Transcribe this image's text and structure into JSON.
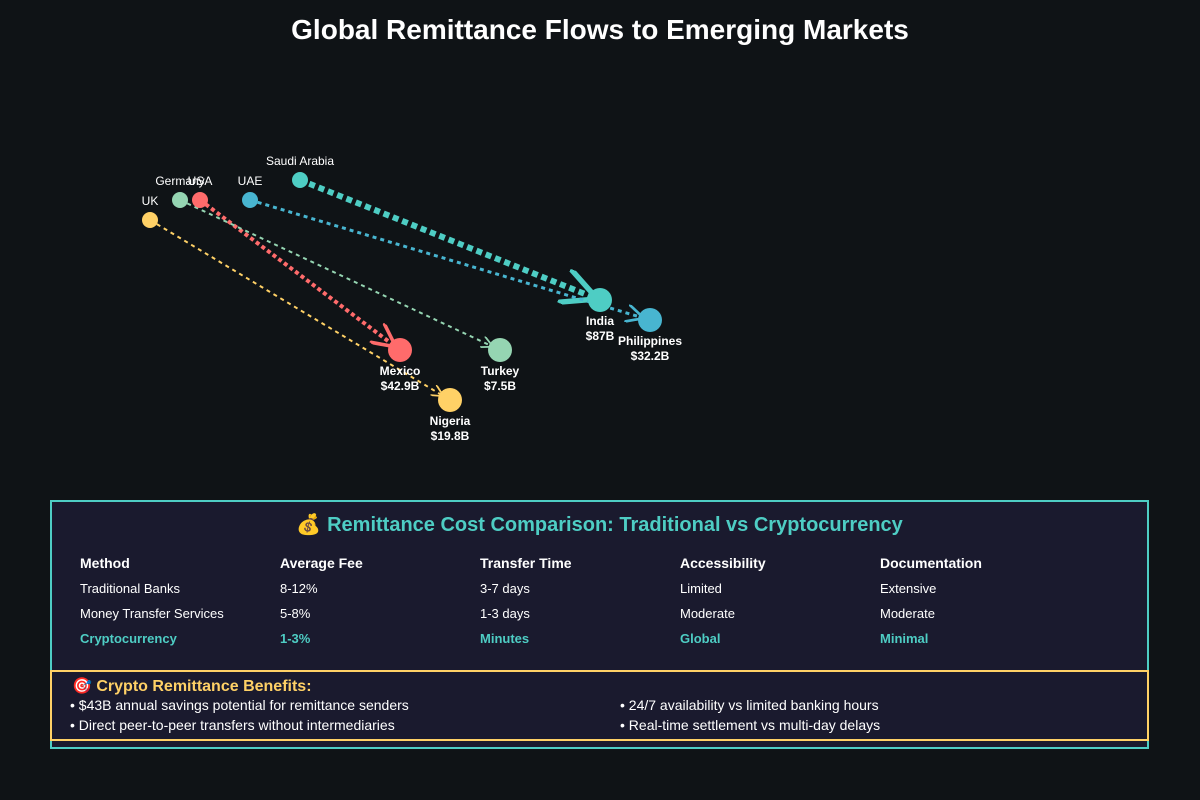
{
  "title": "Global Remittance Flows to Emerging Markets",
  "sources": [
    {
      "name": "UK",
      "color": "#ffd166"
    },
    {
      "name": "Germany",
      "color": "#95d5b2"
    },
    {
      "name": "USA",
      "color": "#ff6b6b"
    },
    {
      "name": "UAE",
      "color": "#48b5d0"
    },
    {
      "name": "Saudi Arabia",
      "color": "#4ecdc4"
    }
  ],
  "destinations": [
    {
      "name": "India",
      "amount": "$87B",
      "color": "#4ecdc4"
    },
    {
      "name": "Philippines",
      "amount": "$32.2B",
      "color": "#48b5d0"
    },
    {
      "name": "Mexico",
      "amount": "$42.9B",
      "color": "#ff6b6b"
    },
    {
      "name": "Turkey",
      "amount": "$7.5B",
      "color": "#95d5b2"
    },
    {
      "name": "Nigeria",
      "amount": "$19.8B",
      "color": "#ffd166"
    }
  ],
  "flows": [
    {
      "from": "Saudi Arabia",
      "to": "India",
      "color": "#4ecdc4"
    },
    {
      "from": "UAE",
      "to": "Philippines",
      "color": "#48b5d0"
    },
    {
      "from": "USA",
      "to": "Mexico",
      "color": "#ff6b6b"
    },
    {
      "from": "Germany",
      "to": "Turkey",
      "color": "#95d5b2"
    },
    {
      "from": "UK",
      "to": "Nigeria",
      "color": "#ffd166"
    }
  ],
  "comparison": {
    "icon": "money-bag-icon",
    "title": "Remittance Cost Comparison: Traditional vs Cryptocurrency",
    "headers": [
      "Method",
      "Average Fee",
      "Transfer Time",
      "Accessibility",
      "Documentation"
    ],
    "rows": [
      [
        "Traditional Banks",
        "8-12%",
        "3-7 days",
        "Limited",
        "Extensive"
      ],
      [
        "Money Transfer Services",
        "5-8%",
        "1-3 days",
        "Moderate",
        "Moderate"
      ],
      [
        "Cryptocurrency",
        "1-3%",
        "Minutes",
        "Global",
        "Minimal"
      ]
    ]
  },
  "benefits": {
    "icon": "target-icon",
    "title": "Crypto Remittance Benefits:",
    "items": [
      "• $43B annual savings potential for remittance senders",
      "• 24/7 availability vs limited banking hours",
      "• Direct peer-to-peer transfers without intermediaries",
      "• Real-time settlement vs multi-day delays"
    ]
  },
  "colors": {
    "background": "#0f1316",
    "panel": "#1a1a2e",
    "accent": "#4ecdc4",
    "benefit_accent": "#ffd166"
  }
}
